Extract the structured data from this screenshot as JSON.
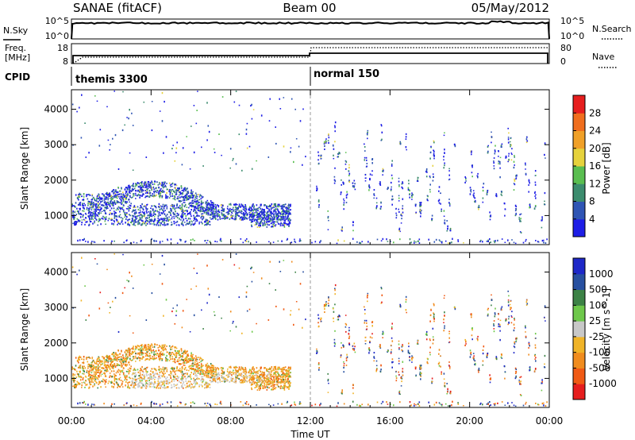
{
  "header": {
    "title": "SANAE (fitACF)",
    "beam": "Beam 00",
    "date": "05/May/2012"
  },
  "nsky_panel": {
    "left_label": "N.Sky",
    "right_label": "N.Search",
    "left_ticks": [
      "10^5",
      "10^0"
    ],
    "right_ticks": [
      "10^5",
      "10^0"
    ]
  },
  "freq_panel": {
    "left_label_1": "Freq.",
    "left_label_2": "[MHz]",
    "right_label": "Nave",
    "left_ticks": [
      "18",
      "8"
    ],
    "right_ticks": [
      "80",
      "0"
    ]
  },
  "cpid_panel": {
    "label": "CPID",
    "modes": [
      {
        "name": "themis 3300",
        "start_hour": 0
      },
      {
        "name": "normal 150",
        "start_hour": 12
      }
    ]
  },
  "x_axis": {
    "label": "Time UT",
    "ticks": [
      "00:00",
      "04:00",
      "08:00",
      "12:00",
      "16:00",
      "20:00",
      "00:00"
    ],
    "range_hours": [
      0,
      24
    ]
  },
  "chart_data": [
    {
      "type": "heatmap",
      "title": "",
      "xlabel": "Time UT",
      "ylabel": "Slant Range [km]",
      "ylim": [
        180,
        4550
      ],
      "yticks": [
        "1000",
        "2000",
        "3000",
        "4000"
      ],
      "ytick_values": [
        1000,
        2000,
        3000,
        4000
      ],
      "colorbar": {
        "label": "Power [dB]",
        "ticks": [
          "4",
          "8",
          "12",
          "16",
          "20",
          "24",
          "28"
        ],
        "range": [
          0,
          30
        ],
        "colors": [
          "#1e1ee6",
          "#2f55b4",
          "#3c8c6e",
          "#5abe50",
          "#e6d23c",
          "#f0a028",
          "#f06e1e",
          "#e61e1e"
        ]
      },
      "features": [
        {
          "feature": "echo band",
          "time_h": [
            0,
            11
          ],
          "range_km": [
            750,
            1500
          ],
          "dominant_value": "4-10 dB"
        },
        {
          "feature": "echo arc",
          "time_h": [
            1.5,
            7
          ],
          "range_km": [
            1300,
            2000
          ],
          "dominant_value": "4-14 dB"
        },
        {
          "feature": "scattered echoes",
          "time_h": [
            12,
            24
          ],
          "range_km": [
            300,
            3600
          ],
          "dominant_value": "4-8 dB"
        }
      ]
    },
    {
      "type": "heatmap",
      "title": "",
      "xlabel": "Time UT",
      "ylabel": "Slant Range [km]",
      "ylim": [
        180,
        4550
      ],
      "yticks": [
        "1000",
        "2000",
        "3000",
        "4000"
      ],
      "ytick_values": [
        1000,
        2000,
        3000,
        4000
      ],
      "colorbar": {
        "label": "Velocity [m s^-1]",
        "ticks": [
          "1000",
          "500",
          "100",
          "25",
          "-25",
          "-100",
          "-500",
          "-1000"
        ],
        "colors": [
          "#1e28c8",
          "#2850a0",
          "#3c8246",
          "#6ec84b",
          "#c8c8c8",
          "#f0b428",
          "#f08c1e",
          "#f05a14",
          "#e61e1e"
        ]
      },
      "features": [
        {
          "feature": "echo band",
          "time_h": [
            0,
            11
          ],
          "range_km": [
            750,
            1500
          ],
          "dominant_value": "-100 to 25 (ground scatter grey near 1000 km)"
        },
        {
          "feature": "echo arc",
          "time_h": [
            1.5,
            7
          ],
          "range_km": [
            1300,
            2000
          ],
          "dominant_value": "-100 to -500"
        },
        {
          "feature": "scattered echoes",
          "time_h": [
            12,
            24
          ],
          "range_km": [
            300,
            3600
          ],
          "dominant_value": "mixed"
        }
      ]
    }
  ]
}
